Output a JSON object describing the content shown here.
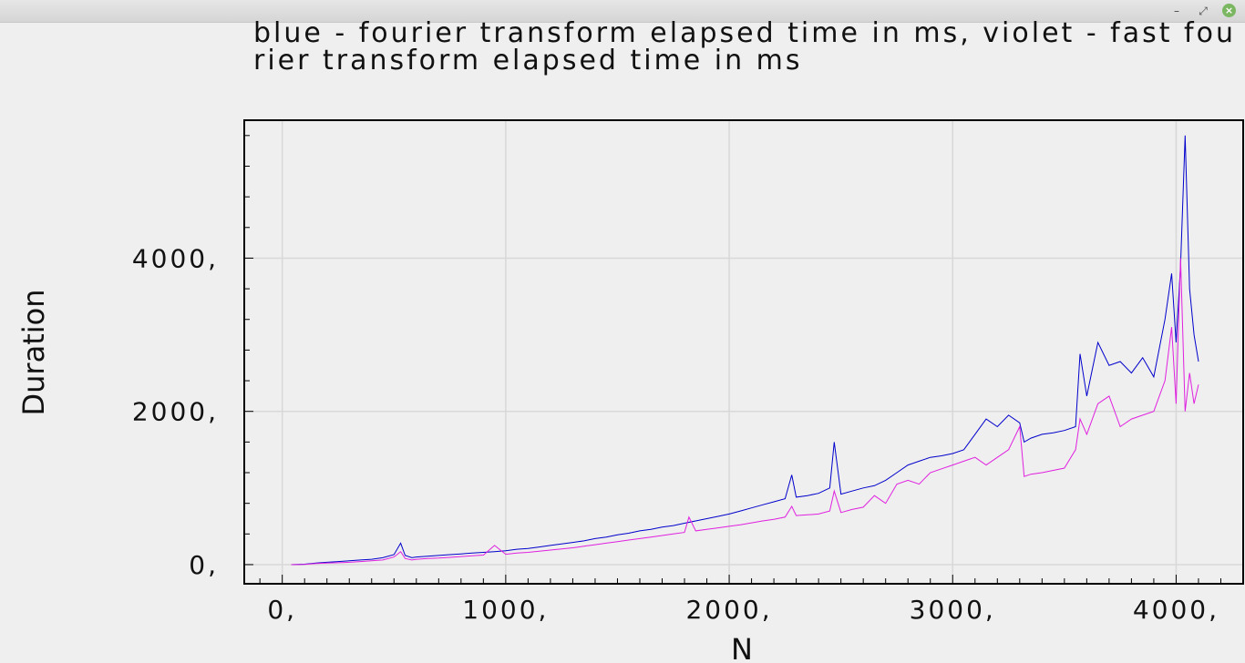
{
  "window": {
    "minimize_glyph": "–",
    "maximize_glyph": "⤢",
    "close_glyph": "×"
  },
  "chart_data": {
    "type": "line",
    "title": "blue - fourier transform elapsed time in ms, violet - fast fourier transform elapsed time in ms",
    "xlabel": "N",
    "ylabel": "Duration",
    "xlim": [
      -170,
      4300
    ],
    "ylim": [
      -250,
      5800
    ],
    "x_ticks": [
      0,
      1000,
      2000,
      3000,
      4000
    ],
    "x_tick_labels": [
      "0,",
      "1000,",
      "2000,",
      "3000,",
      "4000,"
    ],
    "y_ticks": [
      0,
      2000,
      4000
    ],
    "y_tick_labels": [
      "0,",
      "2000,",
      "4000,"
    ],
    "grid": true,
    "legend": "none",
    "colors": {
      "blue": "#0000cc",
      "violet": "#e020e0",
      "grid": "#d8d8d8",
      "axis": "#000000"
    },
    "series": [
      {
        "color": "#0000cc",
        "x": [
          40,
          100,
          150,
          200,
          250,
          300,
          350,
          400,
          450,
          500,
          530,
          550,
          580,
          600,
          650,
          700,
          750,
          800,
          850,
          900,
          950,
          1000,
          1050,
          1100,
          1150,
          1200,
          1250,
          1300,
          1350,
          1400,
          1450,
          1500,
          1550,
          1600,
          1650,
          1700,
          1750,
          1800,
          1850,
          1900,
          1950,
          2000,
          2050,
          2100,
          2150,
          2200,
          2250,
          2280,
          2300,
          2350,
          2400,
          2450,
          2470,
          2500,
          2550,
          2600,
          2650,
          2700,
          2750,
          2800,
          2850,
          2900,
          2950,
          3000,
          3050,
          3100,
          3150,
          3200,
          3250,
          3300,
          3320,
          3350,
          3400,
          3450,
          3500,
          3550,
          3570,
          3600,
          3650,
          3700,
          3750,
          3800,
          3850,
          3900,
          3950,
          3980,
          4000,
          4020,
          4040,
          4060,
          4080,
          4100
        ],
        "y": [
          0,
          5,
          20,
          30,
          40,
          50,
          60,
          70,
          90,
          130,
          280,
          120,
          90,
          100,
          110,
          120,
          130,
          140,
          150,
          160,
          170,
          180,
          200,
          210,
          230,
          250,
          270,
          290,
          310,
          340,
          360,
          390,
          410,
          440,
          460,
          490,
          510,
          540,
          570,
          600,
          630,
          660,
          700,
          740,
          780,
          820,
          860,
          1170,
          880,
          900,
          930,
          1000,
          1600,
          920,
          960,
          1000,
          1030,
          1100,
          1200,
          1300,
          1350,
          1400,
          1420,
          1450,
          1500,
          1700,
          1900,
          1800,
          1950,
          1850,
          1600,
          1650,
          1700,
          1720,
          1750,
          1800,
          2750,
          2200,
          2900,
          2600,
          2650,
          2500,
          2700,
          2450,
          3200,
          3800,
          2900,
          3900,
          5600,
          3600,
          3000,
          2650
        ]
      },
      {
        "color": "#e020e0",
        "x": [
          40,
          100,
          150,
          200,
          250,
          300,
          350,
          400,
          450,
          500,
          530,
          550,
          580,
          600,
          650,
          700,
          750,
          800,
          850,
          900,
          950,
          1000,
          1050,
          1100,
          1150,
          1200,
          1250,
          1300,
          1350,
          1400,
          1450,
          1500,
          1550,
          1600,
          1650,
          1700,
          1750,
          1800,
          1820,
          1850,
          1900,
          1950,
          2000,
          2050,
          2100,
          2150,
          2200,
          2250,
          2280,
          2300,
          2350,
          2400,
          2450,
          2470,
          2500,
          2550,
          2600,
          2650,
          2700,
          2750,
          2800,
          2850,
          2900,
          2950,
          3000,
          3050,
          3100,
          3150,
          3200,
          3250,
          3300,
          3320,
          3350,
          3400,
          3450,
          3500,
          3550,
          3570,
          3600,
          3650,
          3700,
          3750,
          3800,
          3850,
          3900,
          3950,
          3980,
          4000,
          4020,
          4040,
          4060,
          4080,
          4100
        ],
        "y": [
          0,
          3,
          15,
          20,
          25,
          30,
          40,
          50,
          60,
          100,
          170,
          80,
          60,
          70,
          80,
          85,
          95,
          105,
          115,
          125,
          250,
          135,
          150,
          160,
          175,
          190,
          205,
          220,
          240,
          260,
          280,
          300,
          320,
          340,
          360,
          380,
          400,
          420,
          620,
          440,
          460,
          480,
          500,
          520,
          545,
          570,
          590,
          620,
          760,
          640,
          650,
          660,
          700,
          960,
          680,
          720,
          750,
          900,
          800,
          1050,
          1100,
          1050,
          1200,
          1250,
          1300,
          1350,
          1400,
          1300,
          1400,
          1500,
          1800,
          1150,
          1180,
          1200,
          1230,
          1260,
          1500,
          1900,
          1700,
          2100,
          2200,
          1800,
          1900,
          1950,
          2000,
          2400,
          3100,
          2100,
          4000,
          2000,
          2500,
          2100,
          2350
        ]
      }
    ]
  }
}
